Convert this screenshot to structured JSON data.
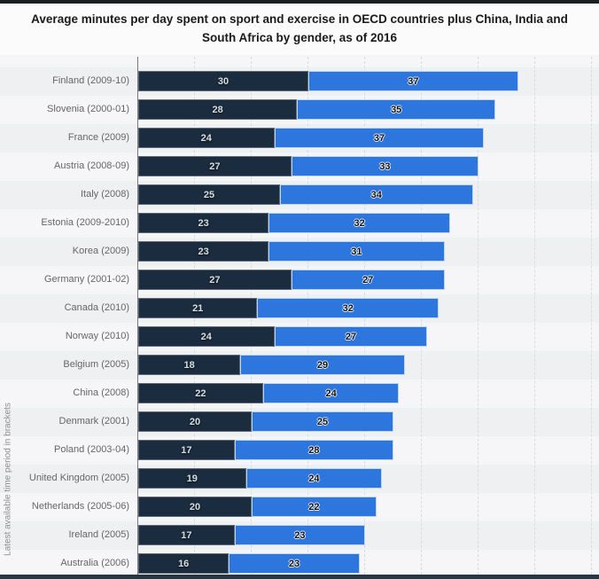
{
  "chart_data": {
    "type": "bar",
    "orientation": "horizontal",
    "stacked": true,
    "title": "Average minutes per day spent on sport and exercise in OECD countries plus China, India and South Africa by gender, as of 2016",
    "ylabel": "Latest available time period in brackets",
    "xlabel": "",
    "xlim": [
      0,
      81
    ],
    "gridline_interval": 10,
    "grid": "dashed-vertical",
    "legend_position": "not-visible-cropped",
    "categories": [
      "Finland (2009-10)",
      "Slovenia (2000-01)",
      "France (2009)",
      "Austria (2008-09)",
      "Italy (2008)",
      "Estonia (2009-2010)",
      "Korea (2009)",
      "Germany (2001-02)",
      "Canada (2010)",
      "Norway (2010)",
      "Belgium (2005)",
      "China (2008)",
      "Denmark (2001)",
      "Poland (2003-04)",
      "United Kingdom (2005)",
      "Netherlands (2005-06)",
      "Ireland (2005)",
      "Australia (2006)"
    ],
    "series": [
      {
        "name": "Segment 1 (dark navy, left)",
        "color": "#1b2c3f",
        "values": [
          30,
          28,
          24,
          27,
          25,
          23,
          23,
          27,
          21,
          24,
          18,
          22,
          20,
          17,
          19,
          20,
          17,
          16
        ]
      },
      {
        "name": "Segment 2 (blue, right)",
        "color": "#2c76dd",
        "values": [
          37,
          35,
          37,
          33,
          34,
          32,
          31,
          27,
          32,
          27,
          29,
          24,
          25,
          28,
          24,
          22,
          23,
          23
        ]
      }
    ]
  },
  "colors": {
    "top_strip": "#1b1e23",
    "bottom_strip": "#2a3542",
    "chart_background": "#f6f6f8",
    "row_stripe": "#eff0f2",
    "axis_line": "#787878",
    "gridline": "#d9dadd",
    "title_text": "#1a1a1a",
    "category_label_text": "#666666",
    "dark_bar_value_text": "#d9dde2",
    "blue_bar_value_text": "#0d0d0d"
  }
}
